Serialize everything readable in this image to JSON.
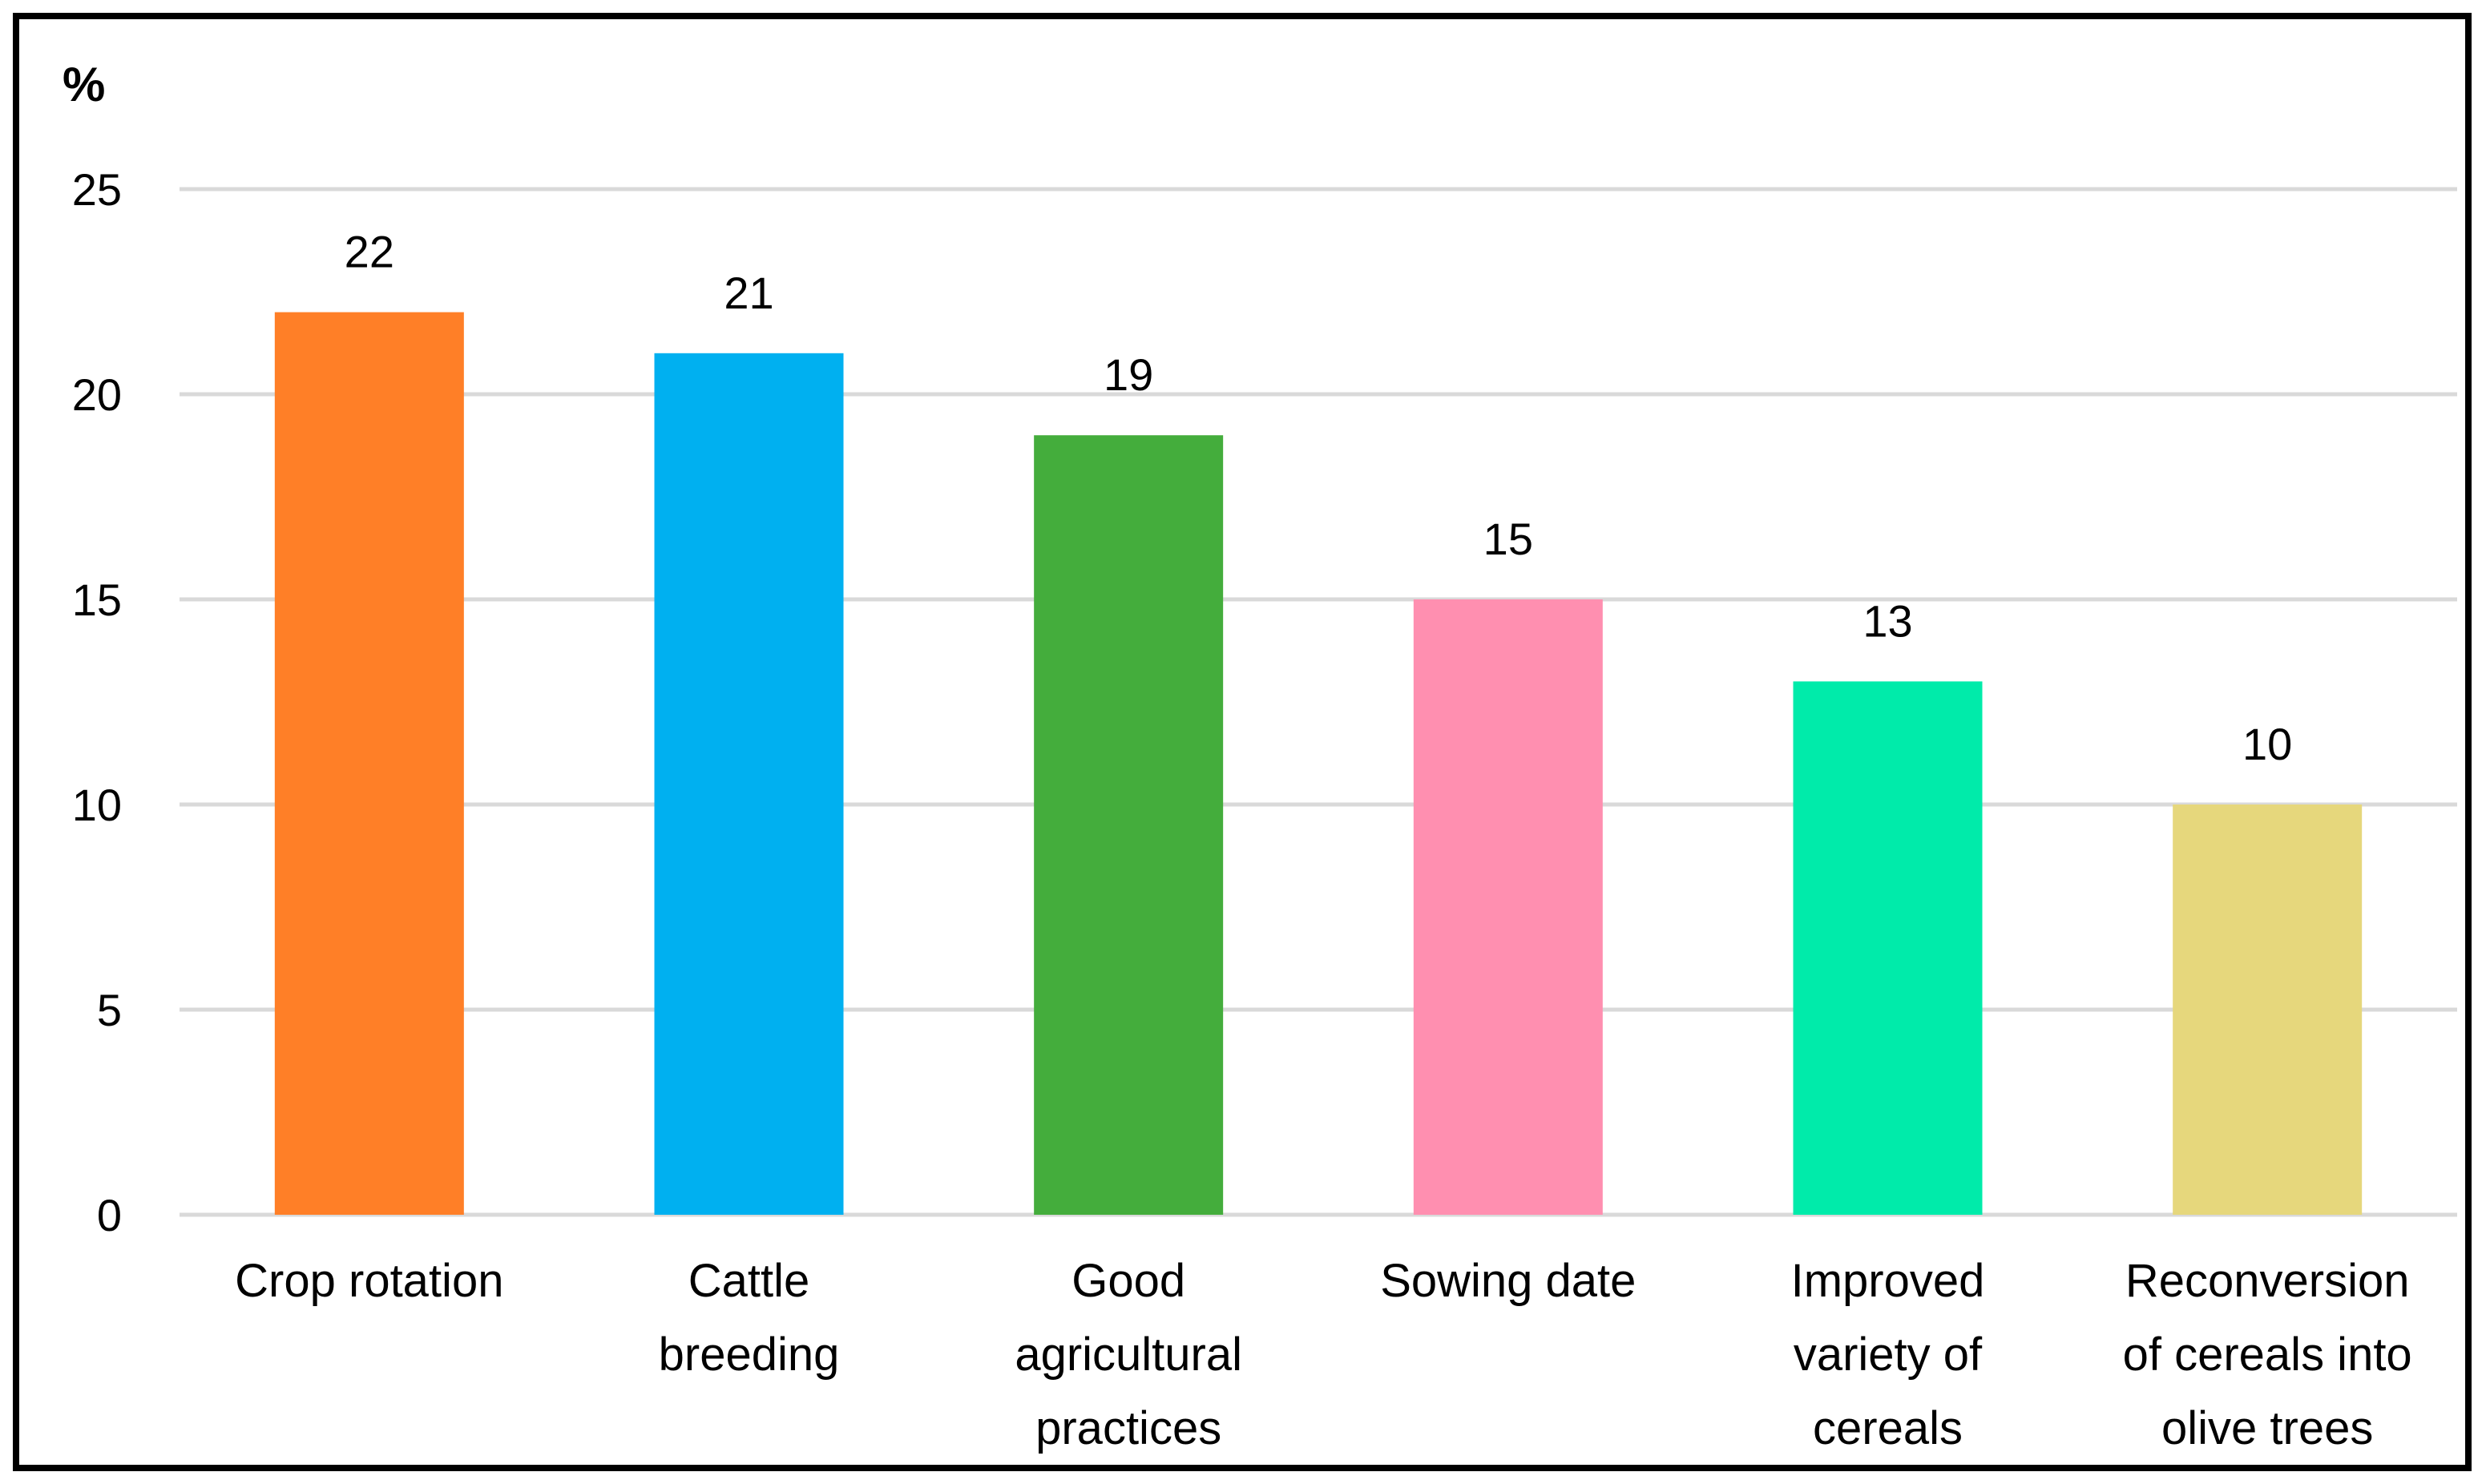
{
  "chart_data": {
    "type": "bar",
    "title": "",
    "xlabel": "",
    "ylabel": "%",
    "ylim": [
      0,
      25
    ],
    "yticks": [
      "0",
      "5",
      "10",
      "15",
      "20",
      "25"
    ],
    "grid": true,
    "legend": "none",
    "categories": [
      [
        "Crop rotation"
      ],
      [
        "Cattle",
        "breeding"
      ],
      [
        "Good",
        "agricultural",
        "practices"
      ],
      [
        "Sowing date"
      ],
      [
        "Improved",
        "variety of",
        "cereals"
      ],
      [
        "Reconversion",
        "of cereals into",
        "olive trees"
      ]
    ],
    "values": [
      22,
      21,
      19,
      15,
      13,
      10
    ],
    "data_labels": [
      "22",
      "21",
      "19",
      "15",
      "13",
      "10"
    ],
    "colors": [
      "#FF7F27",
      "#00B0F0",
      "#44AD3C",
      "#FF8FB0",
      "#00EBAA",
      "#E6D77C"
    ],
    "gridline_color": "#D9D9D9"
  }
}
